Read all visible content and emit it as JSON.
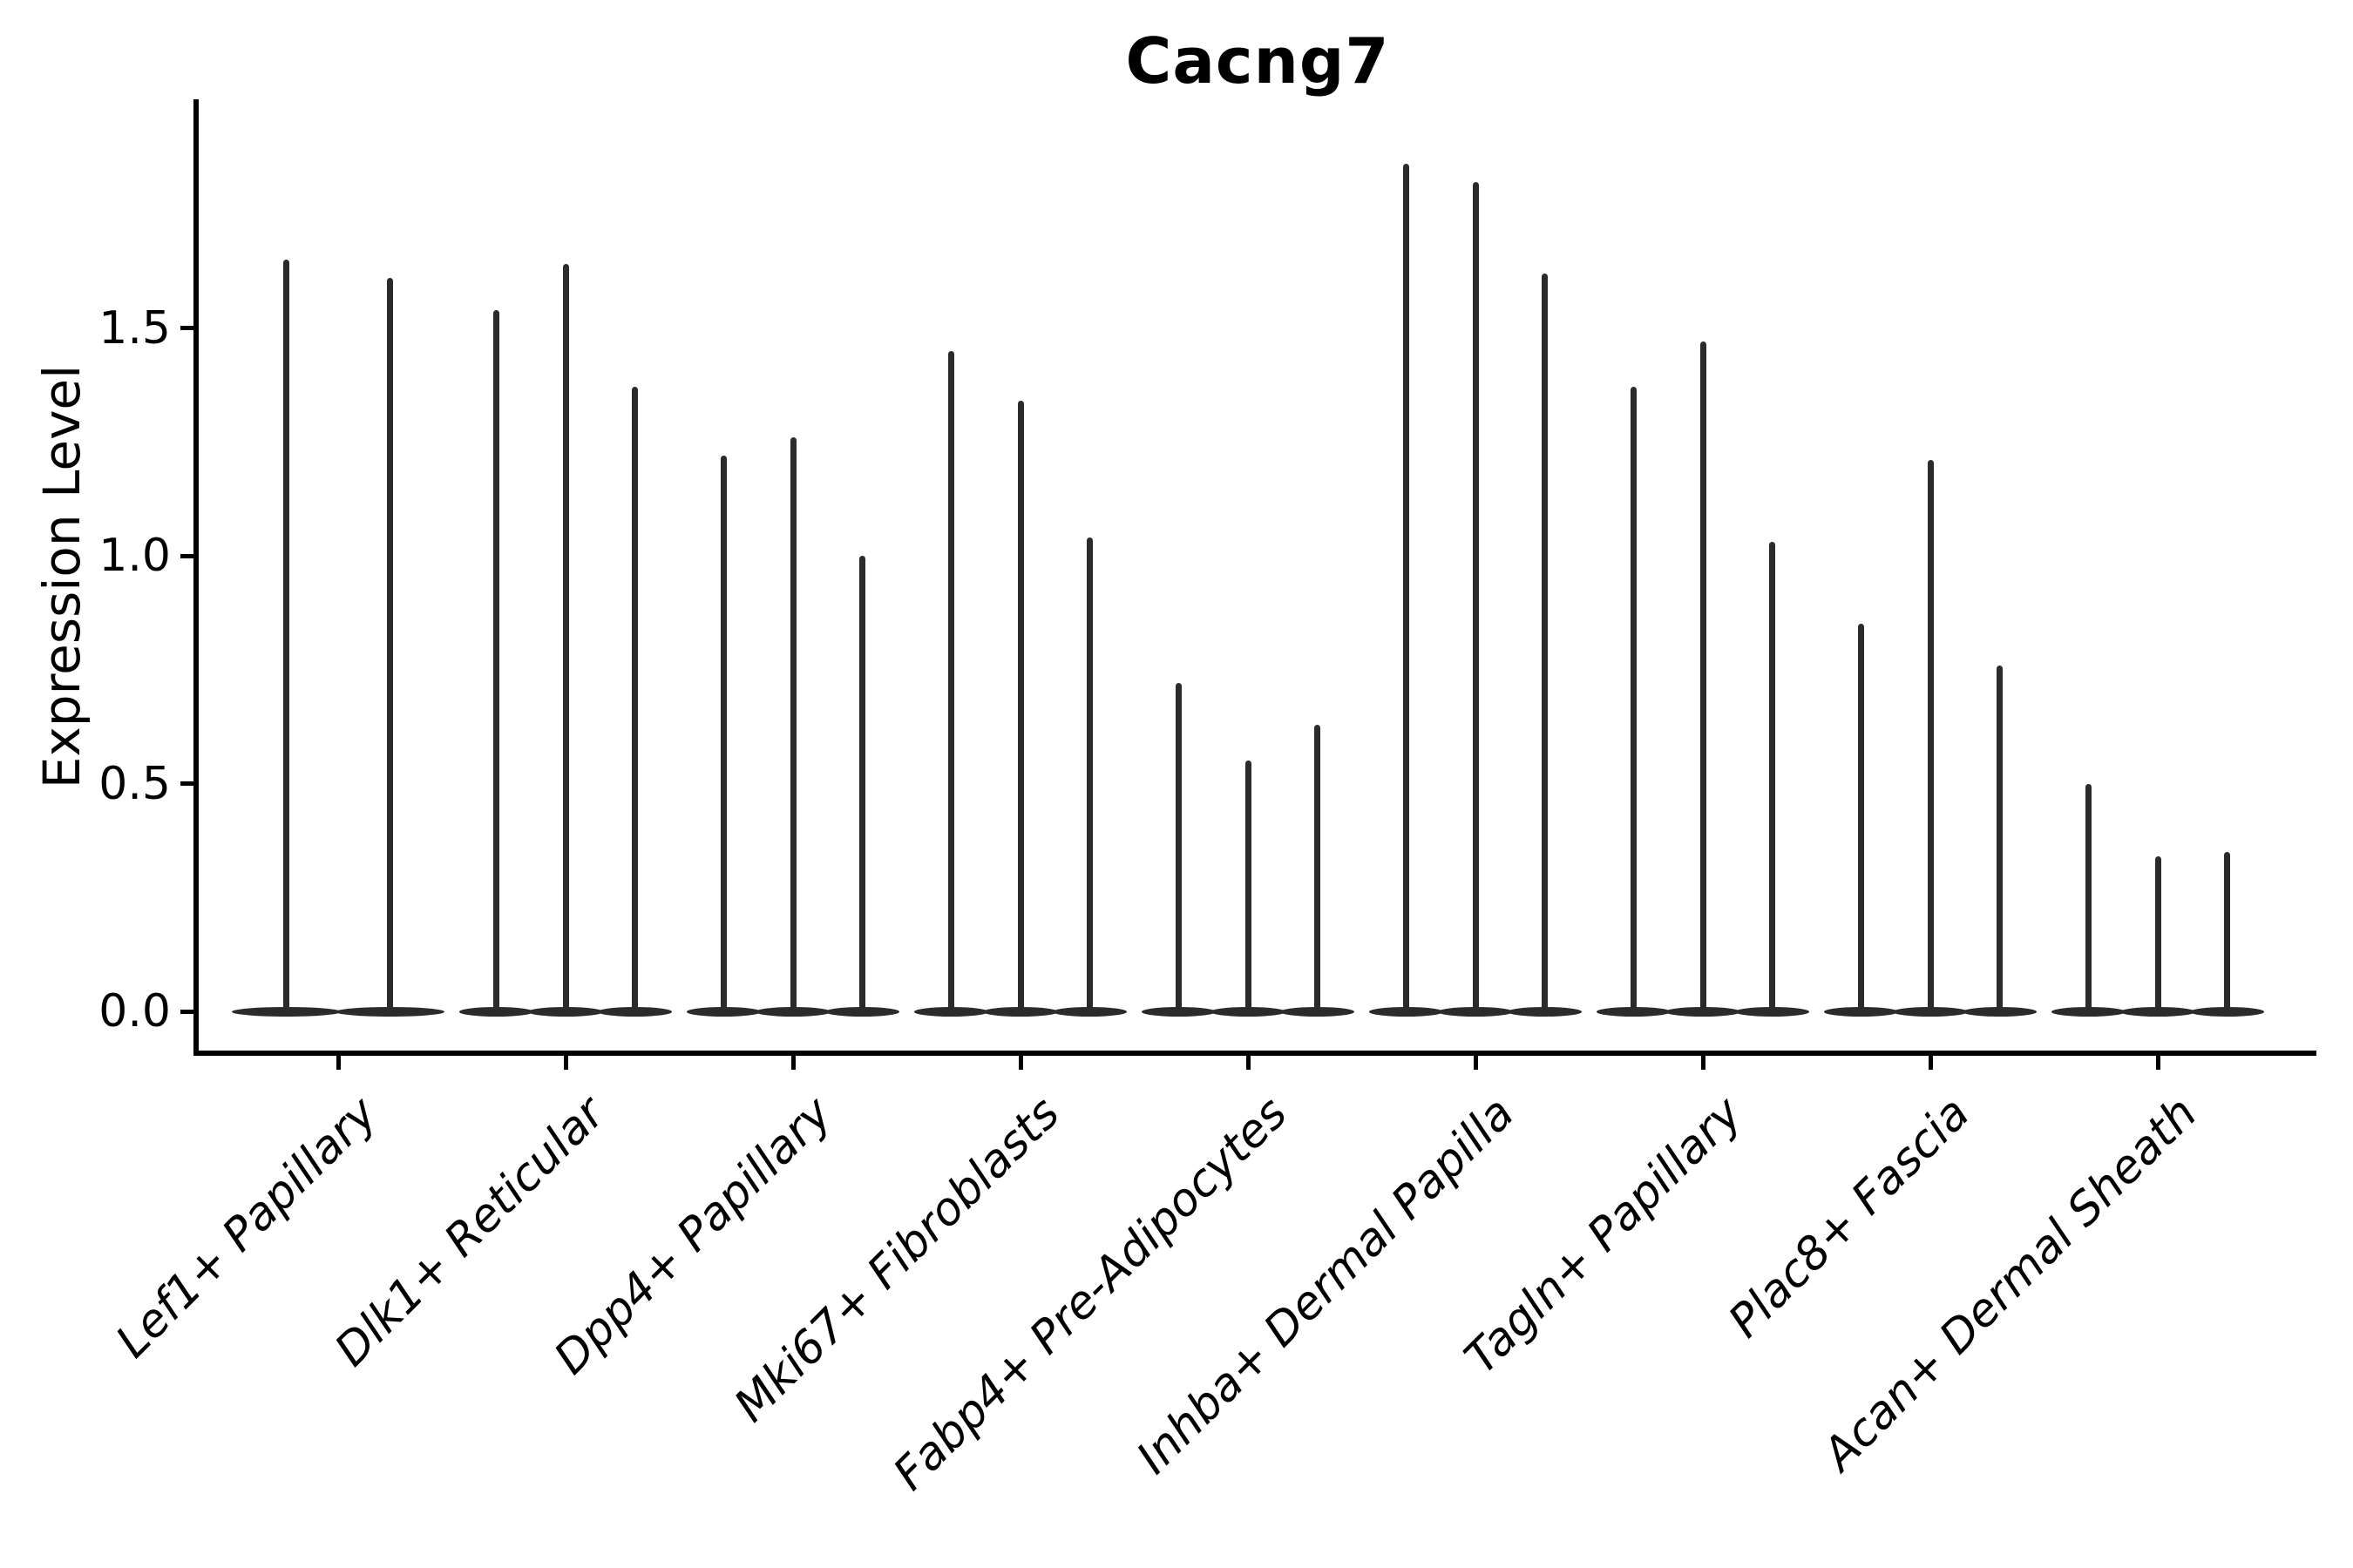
{
  "title": "Cacng7",
  "y_axis": {
    "label": "Expression Level",
    "tick_labels": [
      "0.0",
      "0.5",
      "1.0",
      "1.5"
    ]
  },
  "colors": {
    "violin": "#2b2b2b",
    "axis": "#000000",
    "background": "#ffffff"
  },
  "chart_data": {
    "type": "violin",
    "title": "Cacng7",
    "xlabel": "",
    "ylabel": "Expression Level",
    "ylim": [
      0,
      2.0
    ],
    "yticks": [
      0.0,
      0.5,
      1.0,
      1.5
    ],
    "grid": false,
    "legend": "none",
    "categories": [
      "Lef1+ Papillary",
      "Dlk1+ Reticular",
      "Dpp4+ Papillary",
      "Mki67+ Fibroblasts",
      "Fabp4+ Pre-Adipocytes",
      "Inhba+ Dermal Papilla",
      "Tagln+ Papillary",
      "Plac8+ Fascia",
      "Acan+ Dermal Sheath"
    ],
    "description": "Thin violin plots; each cell-type group shows 2-3 violins whose mass sits at 0 with a narrow spike up to the listed maximum expression value.",
    "baseline_value": 0.0,
    "groups": [
      {
        "label": "Lef1+ Papillary",
        "violin_max": [
          1.65,
          1.61
        ]
      },
      {
        "label": "Dlk1+ Reticular",
        "violin_max": [
          1.54,
          1.64,
          1.37
        ]
      },
      {
        "label": "Dpp4+ Papillary",
        "violin_max": [
          1.22,
          1.26,
          1.0
        ]
      },
      {
        "label": "Mki67+ Fibroblasts",
        "violin_max": [
          1.45,
          1.34,
          1.04
        ]
      },
      {
        "label": "Fabp4+ Pre-Adipocytes",
        "violin_max": [
          0.72,
          0.55,
          0.63
        ]
      },
      {
        "label": "Inhba+ Dermal Papilla",
        "violin_max": [
          1.86,
          1.82,
          1.62
        ]
      },
      {
        "label": "Tagln+ Papillary",
        "violin_max": [
          1.37,
          1.47,
          1.03
        ]
      },
      {
        "label": "Plac8+ Fascia",
        "violin_max": [
          0.85,
          1.21,
          0.76
        ]
      },
      {
        "label": "Acan+ Dermal Sheath",
        "violin_max": [
          0.5,
          0.34,
          0.35
        ]
      }
    ]
  }
}
